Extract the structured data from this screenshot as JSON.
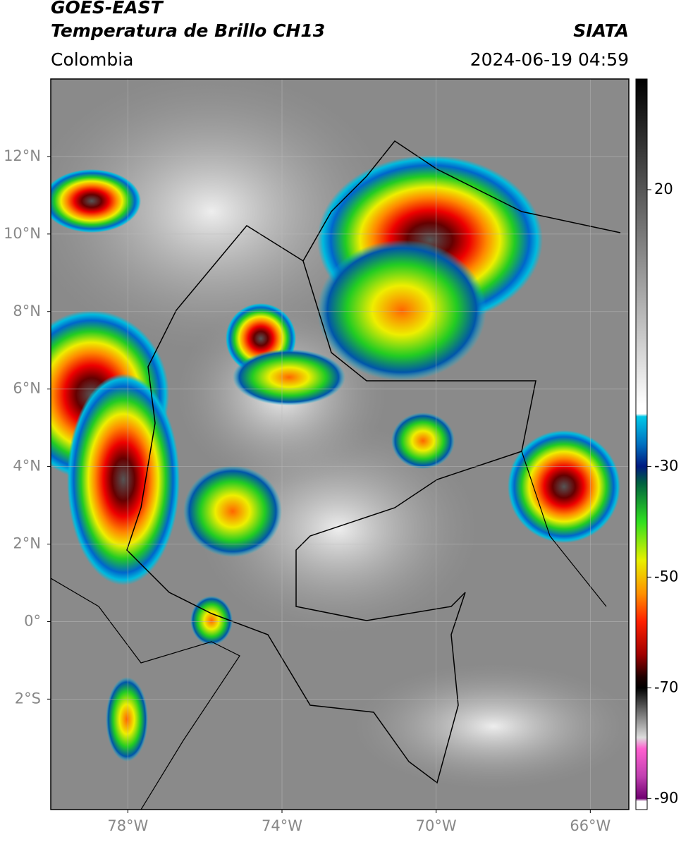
{
  "header": {
    "title": "GOES-EAST",
    "subtitle": "Temperatura de Brillo CH13",
    "region": "Colombia",
    "source": "SIATA",
    "timestamp": "2024-06-19 04:59"
  },
  "map": {
    "lon_range": [
      -80,
      -65
    ],
    "lat_range": [
      -4.85,
      14
    ],
    "grid": true,
    "lat_ticks": [
      {
        "value": 12,
        "label": "12°N"
      },
      {
        "value": 10,
        "label": "10°N"
      },
      {
        "value": 8,
        "label": "8°N"
      },
      {
        "value": 6,
        "label": "6°N"
      },
      {
        "value": 4,
        "label": "4°N"
      },
      {
        "value": 2,
        "label": "2°N"
      },
      {
        "value": 0,
        "label": "0°"
      },
      {
        "value": -2,
        "label": "2°S"
      }
    ],
    "lon_ticks": [
      {
        "value": -78,
        "label": "78°W"
      },
      {
        "value": -74,
        "label": "74°W"
      },
      {
        "value": -70,
        "label": "70°W"
      },
      {
        "value": -66,
        "label": "66°W"
      }
    ]
  },
  "colorbar": {
    "range": [
      -92,
      40
    ],
    "ticks": [
      20,
      -30,
      -50,
      -70,
      -90
    ]
  }
}
